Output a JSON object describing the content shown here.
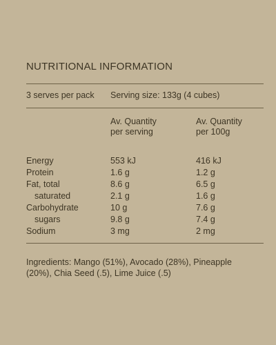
{
  "title": "NUTRITIONAL INFORMATION",
  "serves_per_pack": "3 serves per pack",
  "serving_size": "Serving size: 133g (4 cubes)",
  "columns": {
    "serving_line1": "Av. Quantity",
    "serving_line2": "per serving",
    "per100_line1": "Av. Quantity",
    "per100_line2": "per 100g"
  },
  "rows": [
    {
      "label": "Energy",
      "per_serving": "553 kJ",
      "per_100g": "416 kJ"
    },
    {
      "label": "Protein",
      "per_serving": "1.6 g",
      "per_100g": "1.2 g"
    },
    {
      "label": "Fat, total",
      "per_serving": "8.6 g",
      "per_100g": "6.5 g"
    },
    {
      "label": "saturated",
      "per_serving": "2.1 g",
      "per_100g": "1.6 g"
    },
    {
      "label": "Carbohydrate",
      "per_serving": "10 g",
      "per_100g": "7.6 g"
    },
    {
      "label": "sugars",
      "per_serving": "9.8 g",
      "per_100g": "7.4 g"
    },
    {
      "label": "Sodium",
      "per_serving": "3 mg",
      "per_100g": "2 mg"
    }
  ],
  "ingredients": {
    "label": "Ingredients:",
    "text": "Mango (51%), Avocado (28%), Pineapple (20%), Chia Seed (.5), Lime Juice (.5)"
  }
}
